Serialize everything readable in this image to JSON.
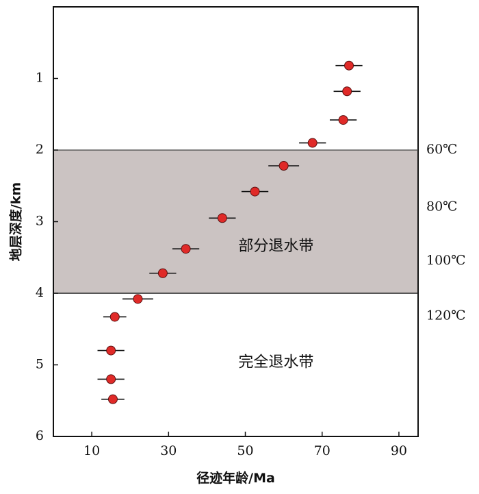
{
  "chart_data": {
    "type": "scatter",
    "xlabel": "径迹年龄/Ma",
    "ylabel": "地层深度/km",
    "xlim": [
      0,
      95
    ],
    "ylim": [
      0,
      6
    ],
    "y_inverted": true,
    "x_ticks": [
      10,
      30,
      50,
      70,
      90
    ],
    "y_ticks": [
      1,
      2,
      3,
      4,
      5,
      6
    ],
    "grid": false,
    "point_color": "#e02a28",
    "band_color": "#cbc3c2",
    "bands": [
      {
        "name": "partial_annealing_zone",
        "label": "部分退水带",
        "y_from": 2,
        "y_to": 4,
        "label_x": 58,
        "label_y": 3.35
      }
    ],
    "zone_labels": [
      {
        "label": "完全退水带",
        "x": 58,
        "y": 4.97
      }
    ],
    "right_annotations": [
      {
        "label": "60℃",
        "y": 2.0
      },
      {
        "label": "80℃",
        "y": 2.8
      },
      {
        "label": "100℃",
        "y": 3.55
      },
      {
        "label": "120℃",
        "y": 4.32
      }
    ],
    "points": [
      {
        "x": 77,
        "y": 0.82,
        "err": 3.5
      },
      {
        "x": 76.5,
        "y": 1.18,
        "err": 3.5
      },
      {
        "x": 75.5,
        "y": 1.58,
        "err": 3.5
      },
      {
        "x": 67.5,
        "y": 1.9,
        "err": 3.5
      },
      {
        "x": 60,
        "y": 2.22,
        "err": 4
      },
      {
        "x": 52.5,
        "y": 2.58,
        "err": 3.5
      },
      {
        "x": 44,
        "y": 2.95,
        "err": 3.5
      },
      {
        "x": 34.5,
        "y": 3.38,
        "err": 3.5
      },
      {
        "x": 28.5,
        "y": 3.72,
        "err": 3.5
      },
      {
        "x": 22,
        "y": 4.08,
        "err": 4
      },
      {
        "x": 16,
        "y": 4.33,
        "err": 3
      },
      {
        "x": 15,
        "y": 4.8,
        "err": 3.5
      },
      {
        "x": 15,
        "y": 5.2,
        "err": 3.5
      },
      {
        "x": 15.5,
        "y": 5.48,
        "err": 3
      }
    ]
  }
}
